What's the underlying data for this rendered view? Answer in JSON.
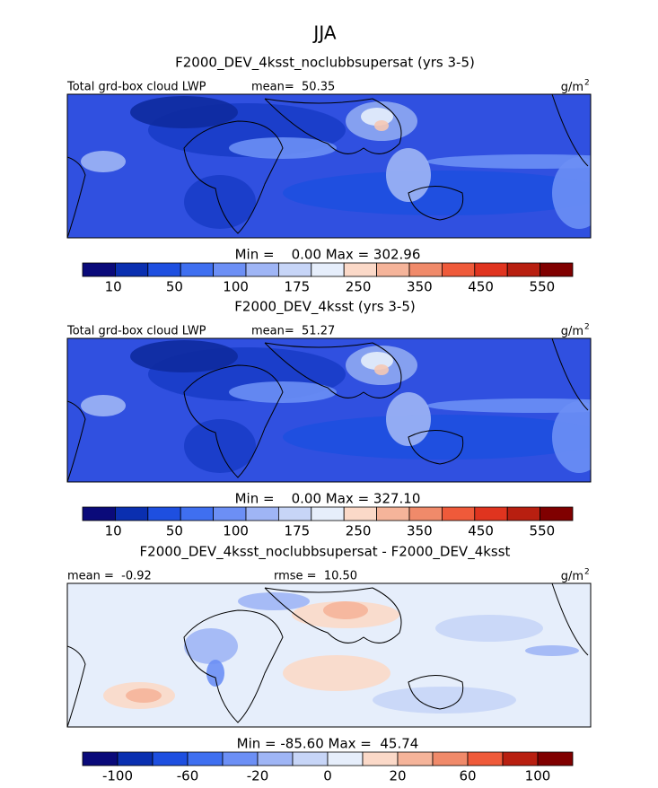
{
  "title": "JJA",
  "panels": [
    {
      "title": "F2000_DEV_4ksst_noclubbsupersat (yrs 3-5)",
      "left": "Total grd-box cloud LWP",
      "center": "mean=  50.35",
      "units": "g/m",
      "units_sup": "2",
      "range": "Min =    0.00 Max = 302.96",
      "colorbar": {
        "labels": [
          "10",
          "50",
          "100",
          "175",
          "250",
          "350",
          "450",
          "550"
        ],
        "colors": [
          "#0a0a7a",
          "#0a2fb0",
          "#1e4fe0",
          "#3f6ff0",
          "#6c8ff5",
          "#9fb5f5",
          "#c7d5f7",
          "#e6eefb",
          "#fbd9c8",
          "#f5b49a",
          "#f08a6a",
          "#ef5a3a",
          "#e0341f",
          "#b81f10",
          "#800000"
        ]
      }
    },
    {
      "title": "F2000_DEV_4ksst (yrs 3-5)",
      "left": "Total grd-box cloud LWP",
      "center": "mean=  51.27",
      "units": "g/m",
      "units_sup": "2",
      "range": "Min =    0.00 Max = 327.10",
      "colorbar": {
        "labels": [
          "10",
          "50",
          "100",
          "175",
          "250",
          "350",
          "450",
          "550"
        ],
        "colors": [
          "#0a0a7a",
          "#0a2fb0",
          "#1e4fe0",
          "#3f6ff0",
          "#6c8ff5",
          "#9fb5f5",
          "#c7d5f7",
          "#e6eefb",
          "#fbd9c8",
          "#f5b49a",
          "#f08a6a",
          "#ef5a3a",
          "#e0341f",
          "#b81f10",
          "#800000"
        ]
      }
    },
    {
      "title": "F2000_DEV_4ksst_noclubbsupersat - F2000_DEV_4ksst",
      "left": "mean =  -0.92",
      "center": "rmse =  10.50",
      "units": "g/m",
      "units_sup": "2",
      "range": "Min = -85.60 Max =  45.74",
      "colorbar": {
        "labels": [
          "-100",
          "-60",
          "-20",
          "0",
          "20",
          "60",
          "100"
        ],
        "colors": [
          "#0a0a7a",
          "#0a2fb0",
          "#1e4fe0",
          "#3f6ff0",
          "#6c8ff5",
          "#9fb5f5",
          "#c7d5f7",
          "#e6eefb",
          "#fbd9c8",
          "#f5b49a",
          "#f08a6a",
          "#ef5a3a",
          "#b81f10",
          "#800000"
        ]
      }
    }
  ]
}
